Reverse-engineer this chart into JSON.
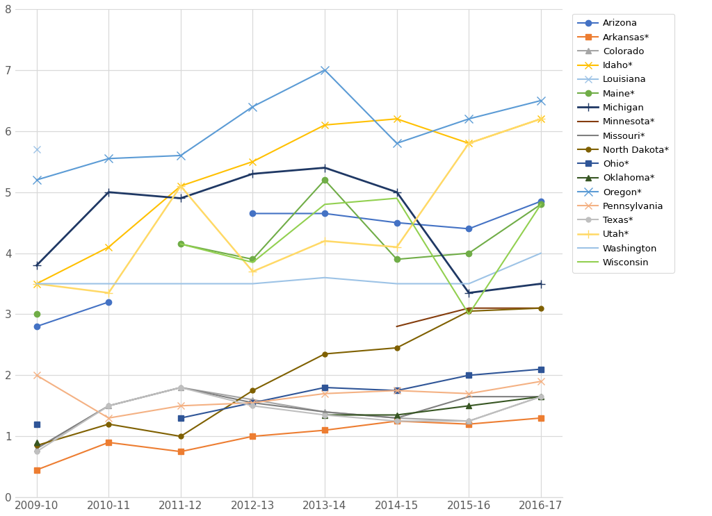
{
  "x_labels": [
    "2009-10",
    "2010-11",
    "2011-12",
    "2012-13",
    "2013-14",
    "2014-15",
    "2015-16",
    "2016-17"
  ],
  "series": [
    {
      "name": "Arizona",
      "values": [
        2.8,
        3.2,
        null,
        4.65,
        4.65,
        4.5,
        4.4,
        4.85
      ],
      "color": "#4472C4",
      "marker": "o",
      "ms": 6,
      "lw": 1.5
    },
    {
      "name": "Arkansas*",
      "values": [
        0.45,
        0.9,
        0.75,
        1.0,
        1.1,
        1.25,
        1.2,
        1.3
      ],
      "color": "#ED7D31",
      "marker": "s",
      "ms": 6,
      "lw": 1.5
    },
    {
      "name": "Colorado",
      "values": [
        0.8,
        1.5,
        1.8,
        1.6,
        1.4,
        1.3,
        1.25,
        1.65
      ],
      "color": "#A5A5A5",
      "marker": "^",
      "ms": 6,
      "lw": 1.5
    },
    {
      "name": "Idaho*",
      "values": [
        3.5,
        4.1,
        5.1,
        5.5,
        6.1,
        6.2,
        5.8,
        6.2
      ],
      "color": "#FFC000",
      "marker": "x",
      "ms": 7,
      "lw": 1.5
    },
    {
      "name": "Louisiana",
      "values": [
        5.7,
        null,
        null,
        null,
        null,
        null,
        null,
        null
      ],
      "color": "#9DC3E6",
      "marker": "x",
      "ms": 7,
      "lw": 1.5
    },
    {
      "name": "Maine*",
      "values": [
        3.0,
        null,
        4.15,
        3.9,
        5.2,
        3.9,
        4.0,
        4.8
      ],
      "color": "#70AD47",
      "marker": "o",
      "ms": 6,
      "lw": 1.5
    },
    {
      "name": "Michigan",
      "values": [
        3.8,
        5.0,
        4.9,
        5.3,
        5.4,
        5.0,
        3.35,
        3.5
      ],
      "color": "#1F3864",
      "marker": "+",
      "ms": 8,
      "lw": 2.0
    },
    {
      "name": "Minnesota*",
      "values": [
        null,
        null,
        null,
        null,
        null,
        2.8,
        3.1,
        3.1
      ],
      "color": "#843C0C",
      "marker": null,
      "ms": 0,
      "lw": 1.5
    },
    {
      "name": "Missouri*",
      "values": [
        0.8,
        1.5,
        1.8,
        1.55,
        1.4,
        1.3,
        1.65,
        1.65
      ],
      "color": "#7F7F7F",
      "marker": null,
      "ms": 0,
      "lw": 1.5
    },
    {
      "name": "North Dakota*",
      "values": [
        0.85,
        1.2,
        1.0,
        1.75,
        2.35,
        2.45,
        3.05,
        3.1
      ],
      "color": "#7F6000",
      "marker": "o",
      "ms": 5,
      "lw": 1.5
    },
    {
      "name": "Ohio*",
      "values": [
        1.2,
        null,
        1.3,
        1.55,
        1.8,
        1.75,
        2.0,
        2.1
      ],
      "color": "#2F5597",
      "marker": "s",
      "ms": 6,
      "lw": 1.5
    },
    {
      "name": "Oklahoma*",
      "values": [
        0.9,
        null,
        null,
        null,
        1.35,
        1.35,
        1.5,
        1.65
      ],
      "color": "#375623",
      "marker": "^",
      "ms": 6,
      "lw": 1.5
    },
    {
      "name": "Oregon*",
      "values": [
        5.2,
        5.55,
        5.6,
        6.4,
        7.0,
        5.8,
        6.2,
        6.5
      ],
      "color": "#5B9BD5",
      "marker": "x",
      "ms": 8,
      "lw": 1.5
    },
    {
      "name": "Pennsylvania",
      "values": [
        2.0,
        1.3,
        1.5,
        1.55,
        1.7,
        1.75,
        1.7,
        1.9
      ],
      "color": "#F4B183",
      "marker": "x",
      "ms": 7,
      "lw": 1.5
    },
    {
      "name": "Texas*",
      "values": [
        0.75,
        1.5,
        1.8,
        1.5,
        1.35,
        1.25,
        1.25,
        1.65
      ],
      "color": "#BFBFBF",
      "marker": "o",
      "ms": 5,
      "lw": 1.5
    },
    {
      "name": "Utah*",
      "values": [
        3.5,
        3.35,
        5.1,
        3.7,
        4.2,
        4.1,
        5.8,
        6.2
      ],
      "color": "#FFD966",
      "marker": "+",
      "ms": 8,
      "lw": 1.8
    },
    {
      "name": "Washington",
      "values": [
        3.5,
        3.5,
        3.5,
        3.5,
        3.6,
        3.5,
        3.5,
        4.0
      ],
      "color": "#9DC3E6",
      "marker": null,
      "ms": 0,
      "lw": 1.5
    },
    {
      "name": "Wisconsin",
      "values": [
        null,
        null,
        4.15,
        3.85,
        4.8,
        4.9,
        3.0,
        4.8
      ],
      "color": "#92D050",
      "marker": null,
      "ms": 0,
      "lw": 1.5
    }
  ],
  "ylim": [
    0,
    8
  ],
  "yticks": [
    0,
    1,
    2,
    3,
    4,
    5,
    6,
    7,
    8
  ],
  "background_color": "#FFFFFF",
  "grid_color": "#D9D9D9",
  "figsize": [
    10.24,
    7.43
  ],
  "dpi": 100
}
